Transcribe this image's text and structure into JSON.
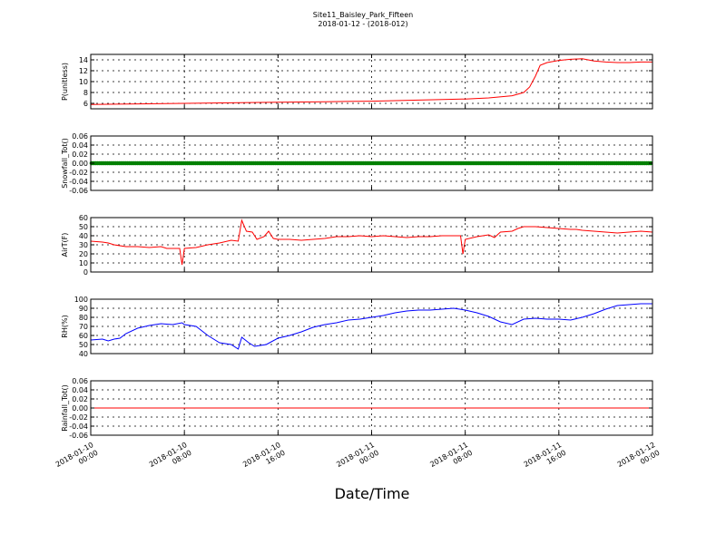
{
  "chart_data": {
    "type": "line",
    "title": "Site11_Baisley_Park_Fifteen",
    "subtitle": "2018-01-12 - (2018-012)",
    "xlabel": "Date/Time",
    "x_ticks": [
      {
        "line1": "2018-01-10",
        "line2": "00:00"
      },
      {
        "line1": "2018-01-10",
        "line2": "08:00"
      },
      {
        "line1": "2018-01-10",
        "line2": "16:00"
      },
      {
        "line1": "2018-01-11",
        "line2": "00:00"
      },
      {
        "line1": "2018-01-11",
        "line2": "08:00"
      },
      {
        "line1": "2018-01-11",
        "line2": "16:00"
      },
      {
        "line1": "2018-01-12",
        "line2": "00:00"
      }
    ],
    "x_range_hours": [
      0,
      48
    ],
    "grid": true,
    "panels": [
      {
        "ylabel": "P(unitless)",
        "ylim": [
          5,
          15
        ],
        "yticks": [
          6,
          8,
          10,
          12,
          14
        ],
        "ytick_labels": [
          "6",
          "8",
          "10",
          "12",
          "14"
        ],
        "color": "#ff0000",
        "marker": false,
        "points": [
          [
            0,
            5.8
          ],
          [
            4,
            5.9
          ],
          [
            8,
            6.0
          ],
          [
            12,
            6.1
          ],
          [
            16,
            6.2
          ],
          [
            20,
            6.3
          ],
          [
            24,
            6.4
          ],
          [
            28,
            6.6
          ],
          [
            32,
            6.8
          ],
          [
            34,
            7.0
          ],
          [
            36,
            7.4
          ],
          [
            37,
            8.0
          ],
          [
            37.5,
            9.0
          ],
          [
            38,
            11.0
          ],
          [
            38.4,
            13.0
          ],
          [
            39,
            13.5
          ],
          [
            40,
            13.9
          ],
          [
            41,
            14.1
          ],
          [
            42,
            14.2
          ],
          [
            42.5,
            14.0
          ],
          [
            43,
            13.8
          ],
          [
            44,
            13.6
          ],
          [
            45,
            13.5
          ],
          [
            46,
            13.5
          ],
          [
            47,
            13.6
          ],
          [
            48,
            13.6
          ]
        ]
      },
      {
        "ylabel": "Snowfall_Tot()",
        "ylim": [
          -0.06,
          0.06
        ],
        "yticks": [
          -0.06,
          -0.04,
          -0.02,
          0.0,
          0.02,
          0.04,
          0.06
        ],
        "ytick_labels": [
          "-0.06",
          "-0.04",
          "-0.02",
          "0.00",
          "0.02",
          "0.04",
          "0.06"
        ],
        "color": "#008000",
        "marker": true,
        "points": [
          [
            0,
            0
          ],
          [
            48,
            0
          ]
        ]
      },
      {
        "ylabel": "AirT(F)",
        "ylim": [
          0,
          60
        ],
        "yticks": [
          0,
          10,
          20,
          30,
          40,
          50,
          60
        ],
        "ytick_labels": [
          "0",
          "10",
          "20",
          "30",
          "40",
          "50",
          "60"
        ],
        "color": "#ff0000",
        "marker": false,
        "points": [
          [
            0,
            34
          ],
          [
            1,
            33
          ],
          [
            1.5,
            32
          ],
          [
            2,
            30
          ],
          [
            3,
            28
          ],
          [
            4,
            28
          ],
          [
            5,
            27
          ],
          [
            6,
            28
          ],
          [
            6.5,
            26
          ],
          [
            7,
            26
          ],
          [
            7.6,
            26
          ],
          [
            7.8,
            8
          ],
          [
            8,
            26
          ],
          [
            9,
            27
          ],
          [
            10,
            30
          ],
          [
            11,
            32
          ],
          [
            12,
            35
          ],
          [
            12.6,
            34
          ],
          [
            12.9,
            57
          ],
          [
            13.3,
            45
          ],
          [
            13.8,
            44
          ],
          [
            14.2,
            36
          ],
          [
            14.8,
            39
          ],
          [
            15.2,
            45
          ],
          [
            15.6,
            37
          ],
          [
            16,
            36
          ],
          [
            17,
            36
          ],
          [
            18,
            35
          ],
          [
            19,
            36
          ],
          [
            20,
            37
          ],
          [
            21,
            39
          ],
          [
            22,
            39
          ],
          [
            23,
            40
          ],
          [
            24,
            39
          ],
          [
            25,
            40
          ],
          [
            26,
            39
          ],
          [
            27,
            38
          ],
          [
            28,
            39
          ],
          [
            29,
            39
          ],
          [
            30,
            40
          ],
          [
            31,
            40
          ],
          [
            31.6,
            40
          ],
          [
            31.8,
            20
          ],
          [
            32,
            36
          ],
          [
            33,
            39
          ],
          [
            34,
            41
          ],
          [
            34.5,
            38
          ],
          [
            35,
            44
          ],
          [
            36,
            45
          ],
          [
            36.5,
            48
          ],
          [
            37,
            50
          ],
          [
            38,
            50
          ],
          [
            39,
            49
          ],
          [
            40,
            48
          ],
          [
            41,
            47
          ],
          [
            41.5,
            47
          ],
          [
            42,
            46
          ],
          [
            43,
            45
          ],
          [
            44,
            44
          ],
          [
            45,
            43
          ],
          [
            46,
            44
          ],
          [
            47,
            45
          ],
          [
            48,
            44
          ]
        ]
      },
      {
        "ylabel": "RH(%)",
        "ylim": [
          40,
          100
        ],
        "yticks": [
          40,
          50,
          60,
          70,
          80,
          90,
          100
        ],
        "ytick_labels": [
          "40",
          "50",
          "60",
          "70",
          "80",
          "90",
          "100"
        ],
        "color": "#0000ff",
        "marker": false,
        "points": [
          [
            0,
            55
          ],
          [
            1,
            56
          ],
          [
            1.5,
            54
          ],
          [
            2,
            56
          ],
          [
            2.5,
            57
          ],
          [
            3,
            62
          ],
          [
            4,
            68
          ],
          [
            5,
            71
          ],
          [
            6,
            73
          ],
          [
            7,
            72
          ],
          [
            7.8,
            74
          ],
          [
            8,
            72
          ],
          [
            9,
            70
          ],
          [
            10,
            60
          ],
          [
            11,
            52
          ],
          [
            12,
            50
          ],
          [
            12.6,
            45
          ],
          [
            12.9,
            58
          ],
          [
            13.5,
            52
          ],
          [
            14,
            48
          ],
          [
            15,
            50
          ],
          [
            16,
            57
          ],
          [
            17,
            60
          ],
          [
            18,
            64
          ],
          [
            19,
            69
          ],
          [
            20,
            72
          ],
          [
            21,
            74
          ],
          [
            22,
            77
          ],
          [
            23,
            78
          ],
          [
            24,
            80
          ],
          [
            25,
            82
          ],
          [
            26,
            85
          ],
          [
            27,
            87
          ],
          [
            28,
            88
          ],
          [
            29,
            88
          ],
          [
            30,
            89
          ],
          [
            31,
            90
          ],
          [
            32,
            88
          ],
          [
            33,
            85
          ],
          [
            34,
            81
          ],
          [
            35,
            75
          ],
          [
            36,
            72
          ],
          [
            37,
            78
          ],
          [
            38,
            79
          ],
          [
            39,
            78
          ],
          [
            40,
            78
          ],
          [
            41,
            77
          ],
          [
            42,
            80
          ],
          [
            43,
            84
          ],
          [
            44,
            89
          ],
          [
            45,
            93
          ],
          [
            46,
            94
          ],
          [
            47,
            95
          ],
          [
            48,
            95
          ]
        ]
      },
      {
        "ylabel": "Rainfall_Tot()",
        "ylim": [
          -0.06,
          0.06
        ],
        "yticks": [
          -0.06,
          -0.04,
          -0.02,
          0.0,
          0.02,
          0.04,
          0.06
        ],
        "ytick_labels": [
          "-0.06",
          "-0.04",
          "-0.02",
          "0.00",
          "0.02",
          "0.04",
          "0.06"
        ],
        "color": "#ff0000",
        "marker": false,
        "points": [
          [
            0,
            0
          ],
          [
            48,
            0
          ]
        ]
      }
    ]
  }
}
